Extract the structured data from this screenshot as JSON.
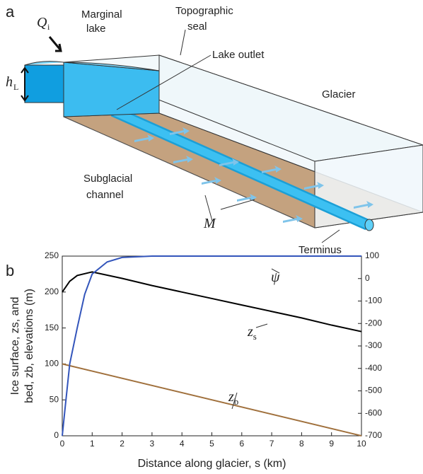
{
  "panel_a": {
    "label": "a",
    "q_symbol": "Q",
    "q_sub": "i",
    "h_symbol": "h",
    "h_sub": "L",
    "marginal_lake": [
      "Marginal",
      "lake"
    ],
    "topographic_seal": [
      "Topographic",
      "seal"
    ],
    "lake_outlet": "Lake outlet",
    "glacier": "Glacier",
    "subglacial_channel": [
      "Subglacial",
      "channel"
    ],
    "melt": "M",
    "terminus": "Terminus"
  },
  "chart_data": {
    "type": "line",
    "panel_label": "b",
    "xlabel": "Distance along glacier, s (km)",
    "ylabel": [
      "Ice surface, zs, and",
      "bed, zb, elevations (m)"
    ],
    "xlim": [
      0,
      10
    ],
    "xticks": [
      0,
      1,
      2,
      3,
      4,
      5,
      6,
      7,
      8,
      9,
      10
    ],
    "ylim": [
      0,
      250
    ],
    "yticks": [
      0,
      50,
      100,
      150,
      200,
      250
    ],
    "y2lim": [
      -700,
      100
    ],
    "y2ticks": [
      -700,
      -600,
      -500,
      -400,
      -300,
      -200,
      -100,
      0,
      100
    ],
    "grid": false,
    "series": [
      {
        "name": "zs",
        "color": "#000000",
        "x": [
          0,
          0.25,
          0.5,
          1,
          2,
          3,
          4,
          5,
          6,
          7,
          8,
          9,
          10
        ],
        "values": [
          200,
          215,
          223,
          228,
          219,
          209,
          200,
          191,
          182,
          173,
          164,
          154,
          145
        ]
      },
      {
        "name": "zb",
        "color": "#a0703c",
        "x": [
          0,
          10
        ],
        "values": [
          100,
          0
        ]
      },
      {
        "name": "ψ",
        "color": "#3355bb",
        "axis": "y2",
        "x": [
          0,
          0.1,
          0.25,
          0.5,
          0.75,
          1,
          1.5,
          2,
          3,
          10
        ],
        "values": [
          -700,
          -570,
          -380,
          -220,
          -70,
          20,
          74,
          94,
          100,
          100
        ]
      }
    ]
  }
}
